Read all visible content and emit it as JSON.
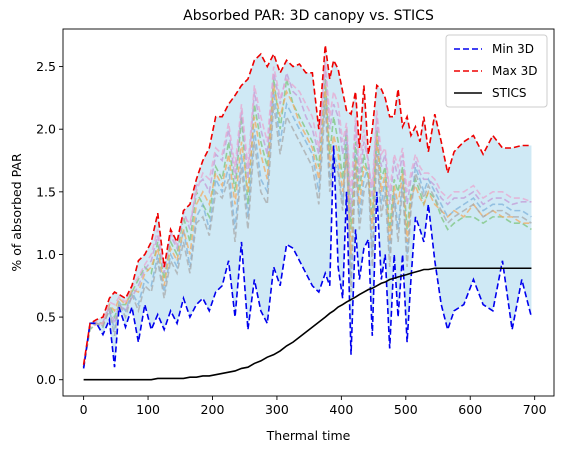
{
  "chart_data": {
    "type": "line",
    "title": "Absorbed PAR: 3D canopy vs. STICS",
    "xlabel": "Thermal time",
    "ylabel": "% of absorbed PAR",
    "xlim": [
      -32,
      730
    ],
    "ylim": [
      -0.13,
      2.8
    ],
    "xticks": [
      0,
      100,
      200,
      300,
      400,
      500,
      600,
      700
    ],
    "yticks": [
      0.0,
      0.5,
      1.0,
      1.5,
      2.0,
      2.5
    ],
    "ytick_labels": [
      "0.0",
      "0.5",
      "1.0",
      "1.5",
      "2.0",
      "2.5"
    ],
    "grid": false,
    "legend_position": "top-right",
    "band_color": "#cfe9f5",
    "x": [
      0,
      10,
      20,
      30,
      40,
      48,
      55,
      65,
      75,
      85,
      95,
      105,
      115,
      125,
      135,
      145,
      155,
      165,
      175,
      185,
      195,
      205,
      215,
      225,
      235,
      245,
      255,
      265,
      275,
      285,
      295,
      305,
      315,
      325,
      335,
      345,
      355,
      365,
      375,
      382,
      388,
      395,
      402,
      408,
      415,
      422,
      428,
      435,
      442,
      448,
      455,
      462,
      468,
      475,
      482,
      488,
      495,
      502,
      508,
      515,
      522,
      528,
      535,
      545,
      555,
      565,
      575,
      590,
      605,
      620,
      635,
      650,
      665,
      680,
      695
    ],
    "series": [
      {
        "name": "Min 3D",
        "color": "#0000ee",
        "style": "dashed",
        "values": [
          0.09,
          0.45,
          0.45,
          0.36,
          0.48,
          0.1,
          0.58,
          0.42,
          0.58,
          0.3,
          0.6,
          0.4,
          0.52,
          0.4,
          0.55,
          0.45,
          0.65,
          0.5,
          0.6,
          0.65,
          0.55,
          0.7,
          0.75,
          0.95,
          0.5,
          1.1,
          0.4,
          0.8,
          0.55,
          0.45,
          0.9,
          0.75,
          1.08,
          1.05,
          0.95,
          0.85,
          0.75,
          0.7,
          0.85,
          0.75,
          1.87,
          0.9,
          0.65,
          1.5,
          0.2,
          1.2,
          0.8,
          1.05,
          1.12,
          0.35,
          1.5,
          0.8,
          1.0,
          0.25,
          1.0,
          0.5,
          1.0,
          0.3,
          0.8,
          1.3,
          1.2,
          1.1,
          1.4,
          0.95,
          0.6,
          0.4,
          0.55,
          0.6,
          0.8,
          0.6,
          0.55,
          0.95,
          0.4,
          0.8,
          0.5
        ]
      },
      {
        "name": "Max 3D",
        "color": "#ee0000",
        "style": "dashed",
        "values": [
          0.12,
          0.45,
          0.48,
          0.5,
          0.65,
          0.7,
          0.68,
          0.65,
          0.75,
          0.95,
          1.0,
          1.1,
          1.33,
          0.9,
          1.2,
          1.1,
          1.35,
          1.4,
          1.6,
          1.75,
          1.85,
          2.1,
          2.1,
          2.2,
          2.27,
          2.35,
          2.4,
          2.55,
          2.6,
          2.5,
          2.6,
          2.45,
          2.55,
          2.5,
          2.52,
          2.45,
          2.45,
          2.0,
          2.67,
          2.4,
          2.55,
          2.48,
          2.3,
          2.15,
          2.12,
          2.3,
          1.85,
          2.35,
          1.8,
          2.0,
          2.35,
          2.32,
          2.25,
          2.1,
          2.1,
          2.32,
          2.02,
          2.1,
          1.95,
          2.02,
          1.9,
          2.1,
          1.82,
          2.12,
          1.9,
          1.65,
          1.82,
          1.9,
          1.95,
          1.8,
          1.95,
          1.85,
          1.85,
          1.87,
          1.87
        ]
      },
      {
        "name": "STICS",
        "color": "#000000",
        "style": "solid",
        "values": [
          0.0,
          0.0,
          0.0,
          0.0,
          0.0,
          0.0,
          0.0,
          0.0,
          0.0,
          0.0,
          0.0,
          0.0,
          0.01,
          0.01,
          0.01,
          0.01,
          0.01,
          0.02,
          0.02,
          0.03,
          0.03,
          0.04,
          0.05,
          0.06,
          0.07,
          0.09,
          0.1,
          0.13,
          0.15,
          0.18,
          0.2,
          0.23,
          0.27,
          0.3,
          0.34,
          0.38,
          0.42,
          0.46,
          0.5,
          0.53,
          0.55,
          0.58,
          0.6,
          0.62,
          0.64,
          0.66,
          0.68,
          0.7,
          0.72,
          0.73,
          0.75,
          0.77,
          0.78,
          0.8,
          0.81,
          0.82,
          0.83,
          0.84,
          0.85,
          0.86,
          0.87,
          0.88,
          0.88,
          0.89,
          0.89,
          0.89,
          0.89,
          0.89,
          0.89,
          0.89,
          0.89,
          0.89,
          0.89,
          0.89,
          0.89
        ]
      }
    ],
    "background_series": [
      {
        "color": "#7fb2d9",
        "values": [
          0.1,
          0.45,
          0.46,
          0.45,
          0.55,
          0.4,
          0.62,
          0.55,
          0.7,
          0.6,
          0.8,
          0.75,
          1.0,
          0.7,
          1.0,
          0.9,
          1.2,
          0.9,
          1.3,
          1.4,
          1.2,
          1.6,
          1.5,
          1.7,
          1.2,
          1.8,
          1.3,
          2.0,
          1.6,
          1.5,
          2.3,
          1.9,
          2.2,
          2.1,
          2.0,
          1.9,
          1.8,
          1.5,
          2.3,
          1.6,
          1.8,
          1.7,
          1.4,
          1.9,
          0.8,
          1.8,
          1.3,
          1.6,
          1.7,
          1.0,
          1.9,
          1.4,
          1.6,
          1.0,
          1.5,
          1.2,
          1.6,
          1.0,
          1.4,
          1.7,
          1.6,
          1.5,
          1.6,
          1.5,
          1.4,
          1.3,
          1.35,
          1.4,
          1.45,
          1.35,
          1.4,
          1.4,
          1.35,
          1.35,
          1.3
        ]
      },
      {
        "color": "#7cc47c",
        "values": [
          0.1,
          0.4,
          0.45,
          0.42,
          0.6,
          0.5,
          0.6,
          0.6,
          0.7,
          0.8,
          0.9,
          0.85,
          1.1,
          0.8,
          1.1,
          1.0,
          1.3,
          1.1,
          1.5,
          1.4,
          1.3,
          1.7,
          1.6,
          1.9,
          1.5,
          2.1,
          1.4,
          2.2,
          1.9,
          1.7,
          2.4,
          2.0,
          2.4,
          2.2,
          2.1,
          2.0,
          1.9,
          1.7,
          2.4,
          1.8,
          2.1,
          1.9,
          1.6,
          2.0,
          1.2,
          1.9,
          1.5,
          1.8,
          1.6,
          1.3,
          2.0,
          1.6,
          1.7,
          1.2,
          1.6,
          1.5,
          1.7,
          1.2,
          1.5,
          1.6,
          1.5,
          1.4,
          1.5,
          1.45,
          1.3,
          1.2,
          1.25,
          1.3,
          1.3,
          1.25,
          1.3,
          1.3,
          1.25,
          1.25,
          1.2
        ]
      },
      {
        "color": "#f2a960",
        "values": [
          0.1,
          0.45,
          0.45,
          0.45,
          0.6,
          0.55,
          0.65,
          0.6,
          0.72,
          0.7,
          0.85,
          0.9,
          1.05,
          0.75,
          1.05,
          0.95,
          1.2,
          1.0,
          1.4,
          1.5,
          1.4,
          1.65,
          1.55,
          1.8,
          1.4,
          1.9,
          1.5,
          2.1,
          1.8,
          1.6,
          2.35,
          2.1,
          2.3,
          2.2,
          2.05,
          1.95,
          1.85,
          1.6,
          2.35,
          1.7,
          1.95,
          1.8,
          1.5,
          1.8,
          1.0,
          1.75,
          1.4,
          1.7,
          1.65,
          1.2,
          1.95,
          1.5,
          1.65,
          1.1,
          1.55,
          1.4,
          1.65,
          1.1,
          1.45,
          1.55,
          1.45,
          1.4,
          1.5,
          1.4,
          1.35,
          1.3,
          1.35,
          1.3,
          1.4,
          1.3,
          1.35,
          1.3,
          1.3,
          1.25,
          1.25
        ]
      },
      {
        "color": "#c39ad6",
        "values": [
          0.1,
          0.42,
          0.44,
          0.46,
          0.58,
          0.45,
          0.6,
          0.55,
          0.66,
          0.75,
          0.88,
          0.95,
          1.15,
          0.85,
          1.15,
          1.05,
          1.35,
          1.2,
          1.55,
          1.6,
          1.5,
          1.8,
          1.75,
          2.0,
          1.6,
          2.15,
          1.6,
          2.3,
          2.0,
          1.8,
          2.45,
          2.2,
          2.45,
          2.3,
          2.25,
          2.1,
          2.0,
          1.8,
          2.5,
          2.0,
          2.2,
          2.1,
          1.8,
          2.0,
          1.3,
          2.05,
          1.6,
          1.9,
          1.75,
          1.45,
          2.1,
          1.7,
          1.8,
          1.4,
          1.75,
          1.6,
          1.8,
          1.4,
          1.6,
          1.75,
          1.65,
          1.6,
          1.6,
          1.55,
          1.45,
          1.4,
          1.45,
          1.45,
          1.5,
          1.4,
          1.45,
          1.45,
          1.4,
          1.42,
          1.42
        ]
      },
      {
        "color": "#e8a6cf",
        "values": [
          0.1,
          0.44,
          0.46,
          0.44,
          0.62,
          0.6,
          0.66,
          0.62,
          0.74,
          0.82,
          0.92,
          1.0,
          1.2,
          0.88,
          1.18,
          1.08,
          1.3,
          1.25,
          1.5,
          1.65,
          1.6,
          1.85,
          1.8,
          2.05,
          1.7,
          2.2,
          1.7,
          2.35,
          2.1,
          1.9,
          2.5,
          2.25,
          2.4,
          2.35,
          2.3,
          2.2,
          2.1,
          1.85,
          2.55,
          2.1,
          2.3,
          2.2,
          1.9,
          2.05,
          1.5,
          2.1,
          1.7,
          2.0,
          1.7,
          1.55,
          2.15,
          1.8,
          1.85,
          1.5,
          1.8,
          1.7,
          1.85,
          1.5,
          1.65,
          1.8,
          1.7,
          1.65,
          1.65,
          1.6,
          1.5,
          1.45,
          1.5,
          1.5,
          1.55,
          1.45,
          1.5,
          1.5,
          1.45,
          1.45,
          1.42
        ]
      },
      {
        "color": "#a8a8a8",
        "values": [
          0.1,
          0.43,
          0.45,
          0.43,
          0.56,
          0.35,
          0.61,
          0.5,
          0.68,
          0.55,
          0.75,
          0.7,
          0.95,
          0.65,
          0.95,
          0.85,
          1.1,
          0.85,
          1.25,
          1.3,
          1.15,
          1.5,
          1.45,
          1.6,
          1.1,
          1.7,
          1.2,
          1.9,
          1.5,
          1.4,
          2.2,
          1.8,
          2.1,
          2.0,
          1.9,
          1.8,
          1.7,
          1.4,
          2.2,
          1.5,
          1.75,
          1.65,
          1.35,
          1.85,
          0.7,
          1.7,
          1.2,
          1.5,
          1.6,
          0.9,
          1.8,
          1.3,
          1.5,
          0.9,
          1.45,
          1.1,
          1.55,
          0.9,
          1.35,
          1.65,
          1.55,
          1.45,
          1.55,
          1.45,
          1.35,
          1.25,
          1.3,
          1.35,
          1.4,
          1.3,
          1.35,
          1.35,
          1.3,
          1.3,
          1.25
        ]
      }
    ]
  }
}
